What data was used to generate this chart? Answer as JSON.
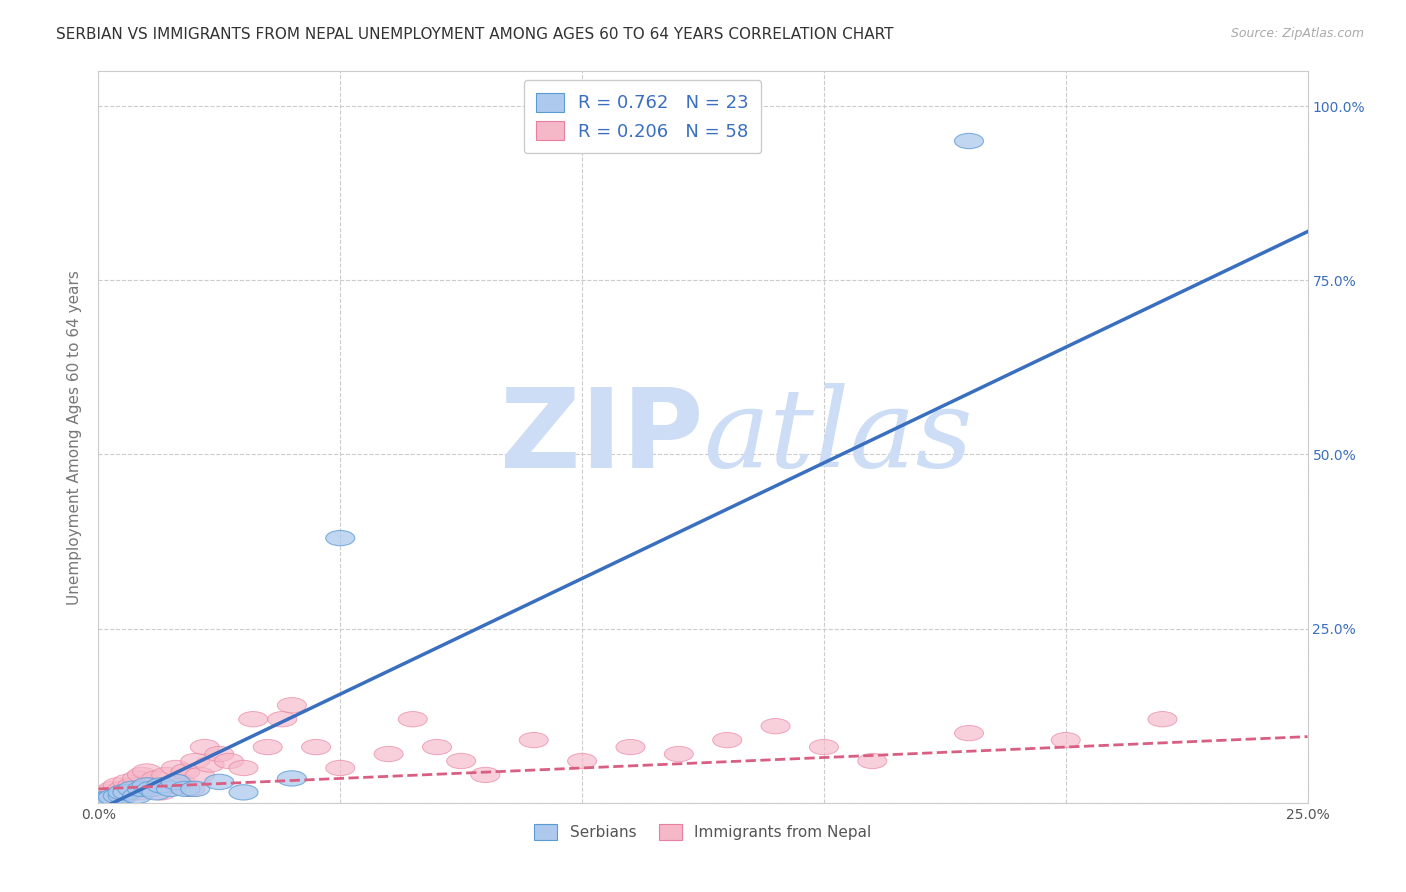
{
  "title": "SERBIAN VS IMMIGRANTS FROM NEPAL UNEMPLOYMENT AMONG AGES 60 TO 64 YEARS CORRELATION CHART",
  "source": "Source: ZipAtlas.com",
  "ylabel": "Unemployment Among Ages 60 to 64 years",
  "xlim": [
    0.0,
    0.25
  ],
  "ylim": [
    0.0,
    1.05
  ],
  "xticks": [
    0.0,
    0.05,
    0.1,
    0.15,
    0.2,
    0.25
  ],
  "yticks": [
    0.0,
    0.25,
    0.5,
    0.75,
    1.0
  ],
  "ytick_labels_right": [
    "",
    "25.0%",
    "50.0%",
    "75.0%",
    "100.0%"
  ],
  "xtick_labels": [
    "0.0%",
    "",
    "",
    "",
    "",
    "25.0%"
  ],
  "serbian_R": 0.762,
  "serbian_N": 23,
  "nepal_R": 0.206,
  "nepal_N": 58,
  "serbian_color": "#adc9ed",
  "nepal_color": "#f5b8c8",
  "serbian_edge_color": "#5b9bd5",
  "nepal_edge_color": "#e87fa0",
  "serbian_line_color": "#3a6fc0",
  "nepal_line_color": "#d95f82",
  "watermark_zip": "ZIP",
  "watermark_atlas": "atlas",
  "watermark_color": "#ccddf5",
  "legend_text_color": "#3a6fc0",
  "background_color": "#ffffff",
  "grid_color": "#cccccc",
  "serbian_points_x": [
    0.001,
    0.002,
    0.003,
    0.004,
    0.005,
    0.005,
    0.006,
    0.007,
    0.008,
    0.009,
    0.01,
    0.011,
    0.012,
    0.013,
    0.015,
    0.016,
    0.018,
    0.02,
    0.025,
    0.03,
    0.04,
    0.05,
    0.18
  ],
  "serbian_points_y": [
    0.005,
    0.005,
    0.008,
    0.01,
    0.01,
    0.015,
    0.015,
    0.02,
    0.01,
    0.02,
    0.025,
    0.02,
    0.015,
    0.025,
    0.02,
    0.03,
    0.02,
    0.02,
    0.03,
    0.015,
    0.035,
    0.38,
    0.95
  ],
  "nepal_points_x": [
    0.001,
    0.001,
    0.002,
    0.002,
    0.003,
    0.003,
    0.004,
    0.004,
    0.005,
    0.005,
    0.006,
    0.006,
    0.007,
    0.007,
    0.008,
    0.008,
    0.009,
    0.009,
    0.01,
    0.01,
    0.011,
    0.012,
    0.013,
    0.014,
    0.015,
    0.016,
    0.017,
    0.018,
    0.019,
    0.02,
    0.021,
    0.022,
    0.023,
    0.025,
    0.027,
    0.03,
    0.032,
    0.035,
    0.038,
    0.04,
    0.045,
    0.05,
    0.06,
    0.065,
    0.07,
    0.075,
    0.08,
    0.09,
    0.1,
    0.11,
    0.12,
    0.13,
    0.14,
    0.15,
    0.16,
    0.18,
    0.2,
    0.22
  ],
  "nepal_points_y": [
    0.005,
    0.01,
    0.008,
    0.015,
    0.005,
    0.02,
    0.01,
    0.025,
    0.015,
    0.02,
    0.012,
    0.03,
    0.018,
    0.025,
    0.02,
    0.035,
    0.015,
    0.04,
    0.02,
    0.045,
    0.025,
    0.035,
    0.015,
    0.04,
    0.025,
    0.05,
    0.03,
    0.045,
    0.02,
    0.06,
    0.04,
    0.08,
    0.055,
    0.07,
    0.06,
    0.05,
    0.12,
    0.08,
    0.12,
    0.14,
    0.08,
    0.05,
    0.07,
    0.12,
    0.08,
    0.06,
    0.04,
    0.09,
    0.06,
    0.08,
    0.07,
    0.09,
    0.11,
    0.08,
    0.06,
    0.1,
    0.09,
    0.12
  ],
  "sb_trend_x0": 0.0,
  "sb_trend_y0": -0.01,
  "sb_trend_x1": 0.25,
  "sb_trend_y1": 0.82,
  "np_trend_x0": 0.0,
  "np_trend_y0": 0.02,
  "np_trend_x1": 0.25,
  "np_trend_y1": 0.095
}
